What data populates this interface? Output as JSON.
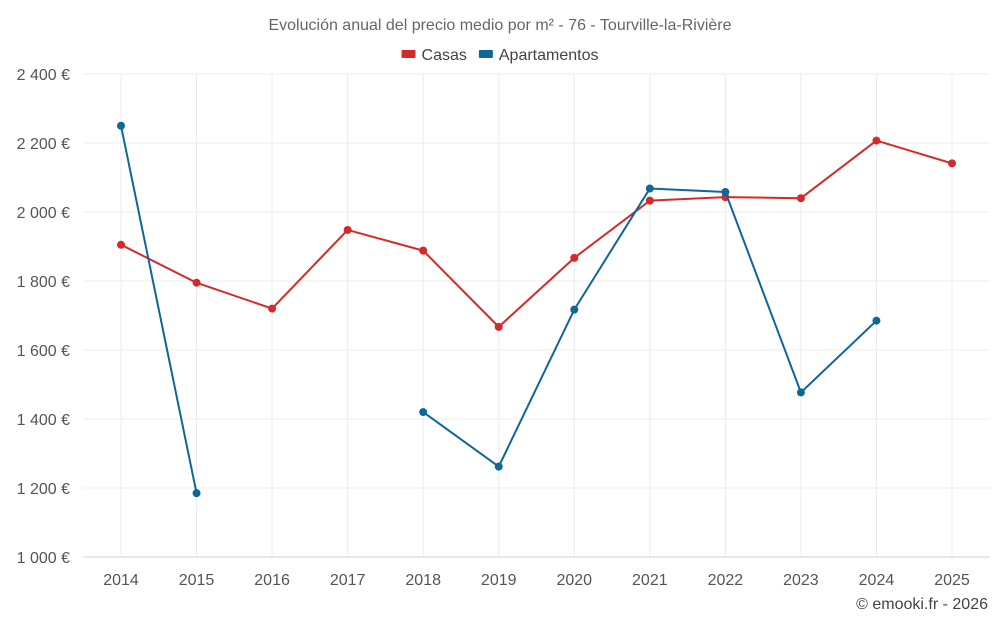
{
  "chart_data": {
    "type": "line",
    "title": "Evolución anual del precio medio por m² - 76 - Tourville-la-Rivière",
    "categories": [
      "2014",
      "2015",
      "2016",
      "2017",
      "2018",
      "2019",
      "2020",
      "2021",
      "2022",
      "2023",
      "2024",
      "2025"
    ],
    "ylim": [
      1000,
      2400
    ],
    "yticks": [
      1000,
      1200,
      1400,
      1600,
      1800,
      2000,
      2200,
      2400
    ],
    "ytick_labels": [
      "1 000 €",
      "1 200 €",
      "1 400 €",
      "1 600 €",
      "1 800 €",
      "2 000 €",
      "2 200 €",
      "2 400 €"
    ],
    "grid": true,
    "legend_position": "top-center",
    "series": [
      {
        "name": "Casas",
        "color": "#d42a2a",
        "values": [
          1905,
          1795,
          1720,
          1948,
          1888,
          1667,
          1867,
          2033,
          2043,
          2040,
          2207,
          2141
        ]
      },
      {
        "name": "Apartamentos",
        "color": "#0f6698",
        "values": [
          2250,
          1185,
          null,
          null,
          1420,
          1262,
          1717,
          2068,
          2058,
          1477,
          1685,
          null
        ]
      }
    ],
    "credit": "© emooki.fr - 2026"
  }
}
